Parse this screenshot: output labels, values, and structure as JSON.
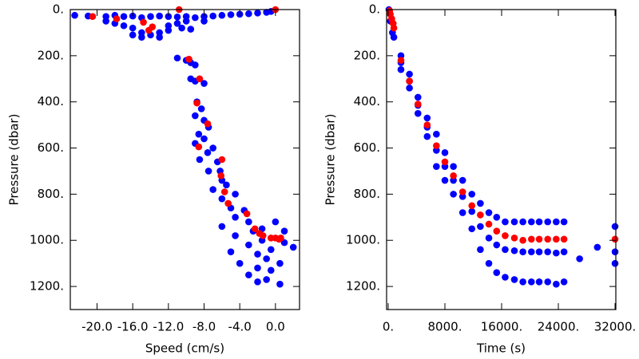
{
  "chart_data": [
    {
      "type": "scatter",
      "xlabel": "Speed (cm/s)",
      "ylabel": "Pressure (dbar)",
      "xlim": [
        -23,
        2.7
      ],
      "ylim": [
        1300,
        0
      ],
      "xticks": [
        {
          "value": -20,
          "label": "-20.0"
        },
        {
          "value": -16,
          "label": "-16.0"
        },
        {
          "value": -12,
          "label": "-12.0"
        },
        {
          "value": -8,
          "label": "-8.0"
        },
        {
          "value": -4,
          "label": "-4.0"
        },
        {
          "value": 0,
          "label": "0.0"
        }
      ],
      "yticks": [
        {
          "value": 0,
          "label": "0."
        },
        {
          "value": 200,
          "label": "200."
        },
        {
          "value": 400,
          "label": "400."
        },
        {
          "value": 600,
          "label": "600."
        },
        {
          "value": 800,
          "label": "800."
        },
        {
          "value": 1000,
          "label": "1000."
        },
        {
          "value": 1200,
          "label": "1200."
        }
      ],
      "series": [
        {
          "color": "#0000ff",
          "x": [
            -22.5,
            -21,
            -19,
            -18,
            -17,
            -16,
            -15,
            -14,
            -13,
            -12,
            -11,
            -10,
            -9,
            -8,
            -7,
            -6,
            -5,
            -4,
            -3,
            -2,
            -1,
            -0.5,
            -19,
            -18,
            -17,
            -16,
            -15,
            -14,
            -13,
            -12,
            -16,
            -15,
            -13,
            -12,
            -11,
            -10,
            -10.5,
            -8,
            -9.5,
            -11,
            -10,
            -9.5,
            -9,
            -9.5,
            -9,
            -8,
            -8.8,
            -8.3,
            -9,
            -8,
            -7.5,
            -8.6,
            -8,
            -9,
            -7,
            -7.6,
            -8.5,
            -6.5,
            -6.2,
            -7.5,
            -6,
            -5.5,
            -7,
            -4.5,
            -6,
            -5,
            -3.5,
            -4.5,
            -3,
            -6,
            -2.5,
            -4.5,
            -1.5,
            -3,
            -5,
            -2,
            -0.5,
            1,
            2,
            -1,
            -4,
            -2,
            -3,
            -1,
            0.5,
            -2,
            -0.5,
            0.5,
            -1.5,
            0,
            1
          ],
          "values": [
            25,
            28,
            30,
            25,
            30,
            28,
            35,
            30,
            28,
            30,
            32,
            30,
            35,
            30,
            28,
            25,
            22,
            20,
            18,
            15,
            12,
            8,
            50,
            60,
            70,
            80,
            100,
            110,
            100,
            90,
            110,
            120,
            120,
            70,
            60,
            50,
            80,
            50,
            85,
            210,
            220,
            230,
            240,
            300,
            310,
            320,
            400,
            430,
            460,
            480,
            510,
            540,
            560,
            580,
            600,
            620,
            650,
            660,
            700,
            700,
            740,
            760,
            780,
            800,
            820,
            860,
            870,
            900,
            920,
            940,
            960,
            980,
            1000,
            1020,
            1050,
            1060,
            1040,
            1010,
            1030,
            1080,
            1100,
            1120,
            1150,
            1170,
            1190,
            1180,
            1130,
            1100,
            950,
            920,
            960
          ]
        },
        {
          "color": "#ff0000",
          "x": [
            -20.5,
            -17.8,
            -14.8,
            -14.2,
            -13.8,
            -10.8,
            0,
            -9.7,
            -8.5,
            -8.8,
            -7.6,
            -8.6,
            -6,
            -6.1,
            -5.7,
            -5.3,
            -3.2,
            -2.3,
            -1.8,
            -1.4,
            -0.5,
            0,
            0.4,
            0.6
          ],
          "values": [
            30,
            40,
            55,
            90,
            75,
            0,
            0,
            215,
            300,
            405,
            495,
            595,
            650,
            720,
            790,
            840,
            885,
            950,
            970,
            980,
            990,
            990,
            995,
            990
          ]
        }
      ]
    },
    {
      "type": "scatter",
      "xlabel": "Time (s)",
      "ylabel": "Pressure (dbar)",
      "xlim": [
        -225,
        32110
      ],
      "ylim": [
        1300,
        0
      ],
      "xticks": [
        {
          "value": 0,
          "label": "0."
        },
        {
          "value": 8000,
          "label": "8000."
        },
        {
          "value": 16000,
          "label": "16000."
        },
        {
          "value": 24000,
          "label": "24000."
        },
        {
          "value": 32000,
          "label": "32000."
        }
      ],
      "yticks": [
        {
          "value": 0,
          "label": "0."
        },
        {
          "value": 200,
          "label": "200."
        },
        {
          "value": 400,
          "label": "400."
        },
        {
          "value": 600,
          "label": "600."
        },
        {
          "value": 800,
          "label": "800."
        },
        {
          "value": 1000,
          "label": "1000."
        },
        {
          "value": 1200,
          "label": "1200."
        }
      ],
      "series": [
        {
          "color": "#0000ff",
          "x": [
            100,
            300,
            600,
            800,
            1800,
            1800,
            1800,
            3000,
            3000,
            3000,
            4200,
            4200,
            4200,
            5500,
            5500,
            5500,
            6800,
            6800,
            6800,
            8000,
            8000,
            8000,
            9200,
            9200,
            9200,
            10500,
            10500,
            10500,
            11800,
            11800,
            11800,
            13000,
            13000,
            13000,
            14200,
            14200,
            14200,
            15300,
            15300,
            15300,
            16500,
            16500,
            16500,
            17800,
            17800,
            17800,
            19000,
            19000,
            19000,
            20200,
            20200,
            20200,
            21300,
            21300,
            21300,
            22500,
            22500,
            22500,
            23700,
            23700,
            23700,
            24800,
            24800,
            24800,
            27000,
            29500,
            32000,
            32000,
            32000
          ],
          "values": [
            0,
            50,
            100,
            120,
            200,
            230,
            260,
            280,
            310,
            340,
            380,
            415,
            450,
            470,
            510,
            550,
            540,
            610,
            680,
            620,
            680,
            740,
            680,
            740,
            800,
            740,
            810,
            880,
            800,
            875,
            950,
            840,
            940,
            1040,
            880,
            990,
            1100,
            900,
            1020,
            1140,
            920,
            1040,
            1160,
            920,
            1045,
            1170,
            920,
            1050,
            1180,
            920,
            1050,
            1180,
            920,
            1050,
            1180,
            920,
            1050,
            1180,
            920,
            1055,
            1190,
            920,
            1050,
            1180,
            1080,
            1030,
            940,
            1050,
            1100
          ]
        },
        {
          "color": "#ff0000",
          "x": [
            200,
            300,
            500,
            700,
            800,
            1800,
            3000,
            4200,
            5500,
            6800,
            8000,
            9200,
            10500,
            11800,
            13000,
            14200,
            15300,
            16500,
            17800,
            19000,
            20200,
            21300,
            22500,
            23700,
            24800,
            32000
          ],
          "values": [
            5,
            20,
            40,
            60,
            80,
            220,
            310,
            410,
            500,
            590,
            660,
            720,
            790,
            850,
            890,
            930,
            960,
            980,
            990,
            1000,
            995,
            995,
            995,
            995,
            995,
            995
          ]
        }
      ]
    }
  ]
}
